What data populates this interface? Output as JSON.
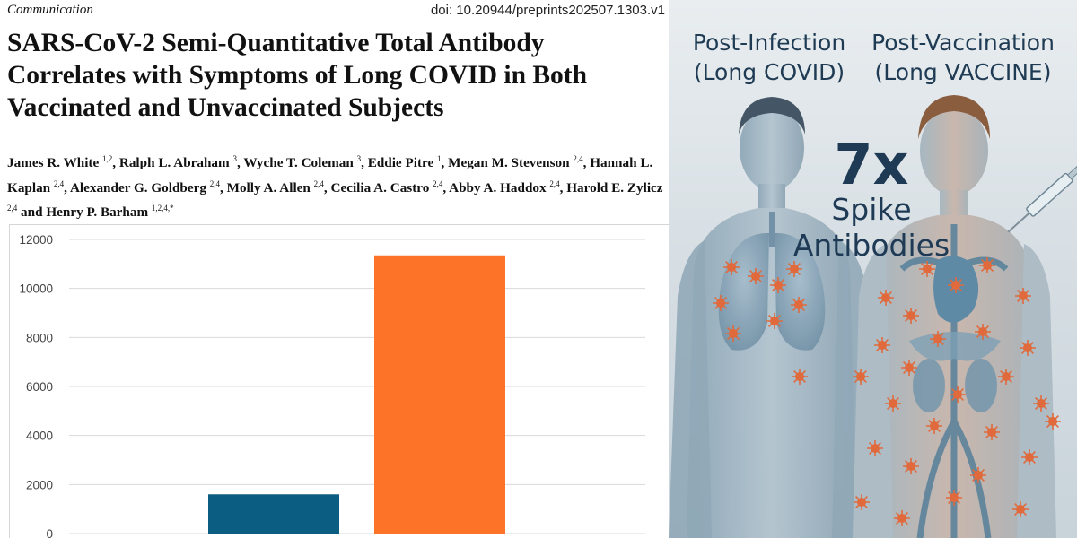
{
  "paper": {
    "section": "Communication",
    "doi": "doi: 10.20944/preprints202507.1303.v1",
    "title": "SARS-CoV-2 Semi-Quantitative Total Antibody Correlates with Symptoms of Long COVID in Both Vaccinated and Unvaccinated Subjects",
    "authors": [
      {
        "name": "James R. White",
        "aff": "1,2"
      },
      {
        "name": "Ralph L. Abraham",
        "aff": "3"
      },
      {
        "name": "Wyche T. Coleman",
        "aff": "3"
      },
      {
        "name": "Eddie Pitre",
        "aff": "1"
      },
      {
        "name": "Megan M. Stevenson",
        "aff": "2,4"
      },
      {
        "name": "Hannah L. Kaplan",
        "aff": "2,4"
      },
      {
        "name": "Alexander G. Goldberg",
        "aff": "2,4"
      },
      {
        "name": "Molly A. Allen",
        "aff": "2,4"
      },
      {
        "name": "Cecilia A. Castro",
        "aff": "2,4"
      },
      {
        "name": "Abby A. Haddox",
        "aff": "2,4"
      },
      {
        "name": "Harold E. Zylicz",
        "aff": "2,4"
      },
      {
        "name": "Henry P. Barham",
        "aff": "1,2,4,*"
      }
    ],
    "and_word": "and"
  },
  "chart_data": {
    "type": "bar",
    "categories": [
      "",
      ""
    ],
    "values": [
      1600,
      11350
    ],
    "colors": [
      "#0b5d82",
      "#fd7327"
    ],
    "ylim": [
      0,
      12000
    ],
    "yticks": [
      0,
      2000,
      4000,
      6000,
      8000,
      10000,
      12000
    ],
    "grid": true,
    "title": "",
    "xlabel": "",
    "ylabel": ""
  },
  "illustration": {
    "left_heading": "Post-Infection",
    "left_sub": "(Long COVID)",
    "right_heading": "Post-Vaccination",
    "right_sub": "(Long VACCINE)",
    "multiplier": "7x",
    "line1": "Spike",
    "line2": "Antibodies",
    "virus_color": "#e06a3c"
  }
}
